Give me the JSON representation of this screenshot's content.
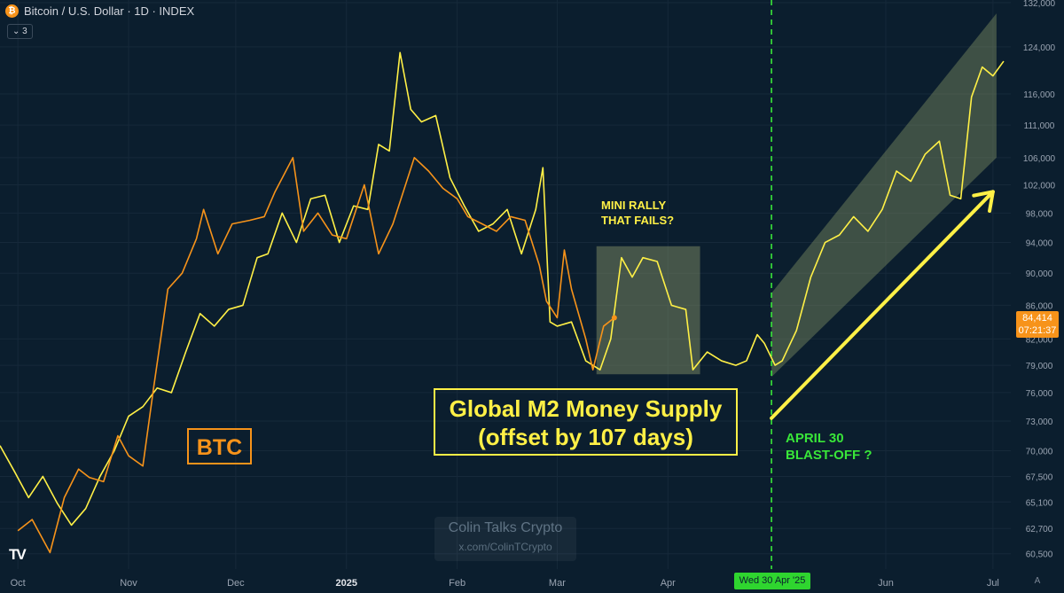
{
  "header": {
    "logo_icon": "bitcoin-icon",
    "symbol_title": "Bitcoin / U.S. Dollar · 1D · INDEX",
    "indicator_toggle": "3"
  },
  "price_tag": {
    "price": "84,414",
    "countdown": "07:21:37",
    "color": "#f7931a"
  },
  "crosshair_label": "Wed 30 Apr '25",
  "auto_scale_label": "A",
  "tradingview_logo": "TV",
  "annotations": {
    "btc_label": "BTC",
    "m2_line1": "Global M2 Money Supply",
    "m2_line2": "(offset by 107 days)",
    "mini_rally_line1": "MINI RALLY",
    "mini_rally_line2": "THAT FAILS?",
    "blastoff_line1": "APRIL 30",
    "blastoff_line2": "BLAST-OFF ?"
  },
  "watermark": {
    "title": "Colin Talks Crypto",
    "handle": "x.com/ColinTCrypto"
  },
  "colors": {
    "background": "#0b1e2e",
    "btc": "#f7931a",
    "m2": "#fff046",
    "blastoff": "#39e639",
    "channel": "#8c9a6a"
  },
  "chart_data": {
    "type": "line",
    "x_tick_labels": [
      "Oct",
      "Nov",
      "Dec",
      "2025",
      "Feb",
      "Mar",
      "Apr",
      "Jun",
      "Jul"
    ],
    "y_scale": "log",
    "y_tick_labels": [
      "60,500",
      "62,700",
      "65,100",
      "67,500",
      "70,000",
      "73,000",
      "76,000",
      "79,000",
      "82,000",
      "86,000",
      "90,000",
      "94,000",
      "98,000",
      "102,000",
      "106,000",
      "111,000",
      "116,000",
      "124,000",
      "132,000"
    ],
    "ylim": [
      59200,
      132500
    ],
    "xlim": [
      "2024-09-26",
      "2025-07-06"
    ],
    "vertical_marker": "2025-04-30",
    "series": [
      {
        "name": "BTC",
        "points": [
          [
            "2024-10-01",
            62500
          ],
          [
            "2024-10-05",
            63500
          ],
          [
            "2024-10-10",
            60600
          ],
          [
            "2024-10-14",
            65500
          ],
          [
            "2024-10-18",
            68200
          ],
          [
            "2024-10-21",
            67400
          ],
          [
            "2024-10-25",
            67000
          ],
          [
            "2024-10-29",
            71500
          ],
          [
            "2024-11-01",
            69500
          ],
          [
            "2024-11-05",
            68500
          ],
          [
            "2024-11-08",
            76500
          ],
          [
            "2024-11-12",
            88000
          ],
          [
            "2024-11-16",
            90000
          ],
          [
            "2024-11-20",
            94500
          ],
          [
            "2024-11-22",
            98500
          ],
          [
            "2024-11-26",
            92500
          ],
          [
            "2024-11-30",
            96500
          ],
          [
            "2024-12-05",
            97000
          ],
          [
            "2024-12-09",
            97500
          ],
          [
            "2024-12-12",
            101000
          ],
          [
            "2024-12-17",
            106000
          ],
          [
            "2024-12-20",
            95500
          ],
          [
            "2024-12-24",
            98000
          ],
          [
            "2024-12-28",
            95000
          ],
          [
            "2025-01-01",
            94500
          ],
          [
            "2025-01-06",
            102000
          ],
          [
            "2025-01-10",
            92500
          ],
          [
            "2025-01-14",
            96500
          ],
          [
            "2025-01-20",
            106000
          ],
          [
            "2025-01-24",
            104000
          ],
          [
            "2025-01-28",
            101500
          ],
          [
            "2025-02-01",
            100000
          ],
          [
            "2025-02-04",
            97500
          ],
          [
            "2025-02-08",
            96500
          ],
          [
            "2025-02-12",
            95500
          ],
          [
            "2025-02-16",
            97500
          ],
          [
            "2025-02-20",
            97000
          ],
          [
            "2025-02-24",
            91000
          ],
          [
            "2025-02-26",
            86500
          ],
          [
            "2025-03-01",
            84500
          ],
          [
            "2025-03-03",
            93000
          ],
          [
            "2025-03-05",
            88000
          ],
          [
            "2025-03-09",
            82000
          ],
          [
            "2025-03-11",
            78500
          ],
          [
            "2025-03-14",
            83500
          ],
          [
            "2025-03-17",
            84500
          ]
        ]
      },
      {
        "name": "Global M2 Money Supply (offset by 107 days)",
        "points": [
          [
            "2024-09-26",
            70500
          ],
          [
            "2024-09-30",
            68000
          ],
          [
            "2024-10-04",
            65500
          ],
          [
            "2024-10-08",
            67500
          ],
          [
            "2024-10-12",
            65000
          ],
          [
            "2024-10-16",
            63000
          ],
          [
            "2024-10-20",
            64500
          ],
          [
            "2024-10-24",
            67500
          ],
          [
            "2024-10-28",
            70000
          ],
          [
            "2024-11-01",
            73500
          ],
          [
            "2024-11-05",
            74500
          ],
          [
            "2024-11-09",
            76500
          ],
          [
            "2024-11-13",
            76000
          ],
          [
            "2024-11-17",
            80500
          ],
          [
            "2024-11-21",
            85000
          ],
          [
            "2024-11-25",
            83500
          ],
          [
            "2024-11-29",
            85500
          ],
          [
            "2024-12-03",
            86000
          ],
          [
            "2024-12-07",
            92000
          ],
          [
            "2024-12-10",
            92500
          ],
          [
            "2024-12-14",
            98000
          ],
          [
            "2024-12-18",
            94000
          ],
          [
            "2024-12-22",
            100000
          ],
          [
            "2024-12-26",
            100500
          ],
          [
            "2024-12-30",
            94000
          ],
          [
            "2025-01-03",
            99000
          ],
          [
            "2025-01-07",
            98500
          ],
          [
            "2025-01-10",
            108000
          ],
          [
            "2025-01-13",
            107000
          ],
          [
            "2025-01-16",
            123000
          ],
          [
            "2025-01-19",
            113500
          ],
          [
            "2025-01-22",
            111500
          ],
          [
            "2025-01-26",
            112500
          ],
          [
            "2025-01-30",
            103000
          ],
          [
            "2025-02-03",
            99000
          ],
          [
            "2025-02-07",
            95500
          ],
          [
            "2025-02-11",
            96500
          ],
          [
            "2025-02-15",
            98500
          ],
          [
            "2025-02-19",
            92500
          ],
          [
            "2025-02-23",
            98500
          ],
          [
            "2025-02-25",
            104500
          ],
          [
            "2025-02-27",
            84000
          ],
          [
            "2025-03-01",
            83500
          ],
          [
            "2025-03-05",
            84000
          ],
          [
            "2025-03-09",
            79500
          ],
          [
            "2025-03-13",
            78500
          ],
          [
            "2025-03-16",
            82000
          ],
          [
            "2025-03-19",
            92000
          ],
          [
            "2025-03-22",
            89500
          ],
          [
            "2025-03-25",
            92000
          ],
          [
            "2025-03-29",
            91500
          ],
          [
            "2025-04-02",
            86000
          ],
          [
            "2025-04-06",
            85500
          ],
          [
            "2025-04-08",
            78500
          ],
          [
            "2025-04-12",
            80500
          ],
          [
            "2025-04-16",
            79500
          ],
          [
            "2025-04-20",
            79000
          ],
          [
            "2025-04-23",
            79500
          ],
          [
            "2025-04-26",
            82500
          ],
          [
            "2025-04-28",
            81500
          ],
          [
            "2025-05-01",
            79000
          ],
          [
            "2025-05-03",
            79500
          ],
          [
            "2025-05-07",
            83000
          ],
          [
            "2025-05-11",
            89500
          ],
          [
            "2025-05-15",
            94000
          ],
          [
            "2025-05-19",
            95000
          ],
          [
            "2025-05-23",
            97500
          ],
          [
            "2025-05-27",
            95500
          ],
          [
            "2025-05-31",
            98500
          ],
          [
            "2025-06-04",
            104000
          ],
          [
            "2025-06-08",
            102500
          ],
          [
            "2025-06-12",
            106500
          ],
          [
            "2025-06-16",
            108500
          ],
          [
            "2025-06-19",
            100500
          ],
          [
            "2025-06-22",
            100000
          ],
          [
            "2025-06-25",
            115500
          ],
          [
            "2025-06-28",
            120500
          ],
          [
            "2025-07-01",
            119000
          ],
          [
            "2025-07-04",
            121500
          ]
        ]
      }
    ],
    "shaded_regions": [
      {
        "label": "MINI RALLY THAT FAILS?",
        "x_start": "2025-03-12",
        "x_end": "2025-04-10",
        "y_low": 78000,
        "y_high": 93500
      },
      {
        "label": "channel",
        "polygon": [
          [
            "2025-04-30",
            77700
          ],
          [
            "2025-07-02",
            106000
          ],
          [
            "2025-07-02",
            130000
          ],
          [
            "2025-04-30",
            87500
          ]
        ]
      }
    ],
    "arrow": {
      "from": [
        "2025-04-30",
        73300
      ],
      "to": [
        "2025-07-01",
        101000
      ]
    }
  }
}
